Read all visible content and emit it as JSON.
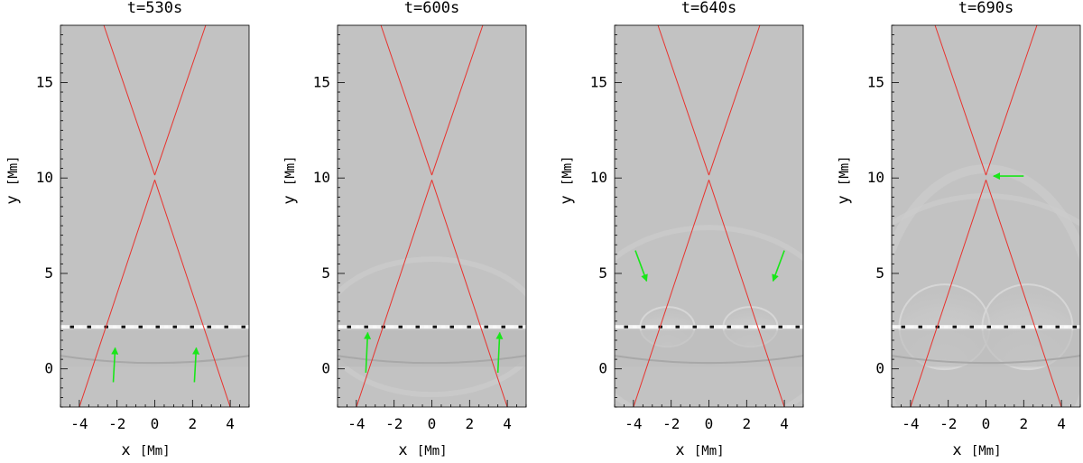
{
  "figure": {
    "panels": [
      {
        "title": "t=530s"
      },
      {
        "title": "t=600s"
      },
      {
        "title": "t=640s"
      },
      {
        "title": "t=690s"
      }
    ],
    "x_label": "x",
    "x_unit": "[Mm]",
    "y_label": "y",
    "y_unit": "[Mm]",
    "x_tick_labels": [
      "-4",
      "-2",
      "0",
      "2",
      "4"
    ],
    "y_tick_labels": [
      "0",
      "5",
      "10",
      "15"
    ]
  },
  "chart_data": {
    "type": "image",
    "xlim": [
      -5,
      5
    ],
    "ylim": [
      -2,
      18
    ],
    "x_ticks": [
      -4,
      -2,
      0,
      2,
      4
    ],
    "y_ticks": [
      0,
      5,
      10,
      15
    ],
    "separatrix_lines": [
      {
        "from": [
          -2.7,
          18
        ],
        "to": [
          0,
          10.15
        ]
      },
      {
        "from": [
          2.7,
          18
        ],
        "to": [
          0,
          10.15
        ]
      },
      {
        "from": [
          -4.0,
          -2
        ],
        "to": [
          0,
          9.9
        ]
      },
      {
        "from": [
          4.0,
          -2
        ],
        "to": [
          0,
          9.9
        ]
      }
    ],
    "colors": {
      "separatrix": "#e8332e",
      "arrow": "#19e619",
      "background": "#c2c2c2"
    },
    "panels": [
      {
        "title": "t=530s",
        "bright_layer_y": 2.2,
        "arrows": [
          {
            "from": [
              -2.2,
              -0.7
            ],
            "to": [
              -2.1,
              1.1
            ]
          },
          {
            "from": [
              2.1,
              -0.7
            ],
            "to": [
              2.2,
              1.1
            ]
          }
        ]
      },
      {
        "title": "t=600s",
        "bright_layer_y": 2.2,
        "arrows": [
          {
            "from": [
              -3.5,
              -0.2
            ],
            "to": [
              -3.4,
              1.9
            ]
          },
          {
            "from": [
              3.5,
              -0.2
            ],
            "to": [
              3.6,
              1.9
            ]
          }
        ]
      },
      {
        "title": "t=640s",
        "bright_layer_y": 2.2,
        "arrows": [
          {
            "from": [
              -3.9,
              6.2
            ],
            "to": [
              -3.3,
              4.6
            ]
          },
          {
            "from": [
              4.0,
              6.2
            ],
            "to": [
              3.4,
              4.6
            ]
          }
        ]
      },
      {
        "title": "t=690s",
        "bright_layer_y": 2.2,
        "arrows": [
          {
            "from": [
              2.0,
              10.1
            ],
            "to": [
              0.4,
              10.1
            ]
          }
        ]
      }
    ]
  }
}
